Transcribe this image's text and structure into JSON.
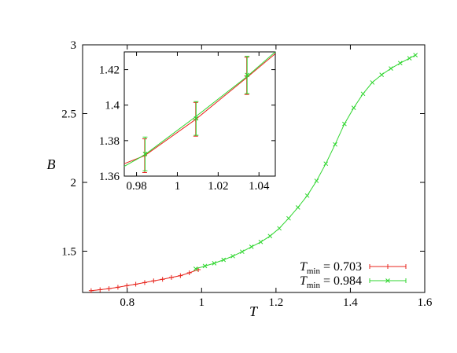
{
  "chart_data": [
    {
      "type": "line",
      "title": "",
      "xlabel": "T",
      "ylabel": "B",
      "xlim": [
        0.68,
        1.6
      ],
      "ylim": [
        1.2,
        3.0
      ],
      "xticks": [
        "0.8",
        "1",
        "1.2",
        "1.4",
        "1.6"
      ],
      "yticks": [
        "1.5",
        "2",
        "2.5",
        "3"
      ],
      "legend_position": "bottom-right",
      "grid": false,
      "series": [
        {
          "name": "T_min = 0.703",
          "legend_main": "T",
          "legend_sub": "min",
          "legend_value": "= 0.703",
          "color": "#e8241c",
          "marker": "plus",
          "x": [
            0.703,
            0.727,
            0.751,
            0.775,
            0.799,
            0.823,
            0.847,
            0.871,
            0.895,
            0.919,
            0.943,
            0.967,
            0.991
          ],
          "y": [
            1.213,
            1.22,
            1.228,
            1.238,
            1.249,
            1.26,
            1.272,
            1.284,
            1.296,
            1.309,
            1.322,
            1.343,
            1.366
          ]
        },
        {
          "name": "T_min = 0.984",
          "legend_main": "T",
          "legend_sub": "min",
          "legend_value": "= 0.984",
          "color": "#2fd62f",
          "marker": "x",
          "x": [
            0.984,
            1.009,
            1.034,
            1.059,
            1.084,
            1.109,
            1.134,
            1.159,
            1.184,
            1.209,
            1.234,
            1.259,
            1.284,
            1.309,
            1.334,
            1.359,
            1.384,
            1.409,
            1.434,
            1.459,
            1.484,
            1.509,
            1.534,
            1.559,
            1.575
          ],
          "y": [
            1.372,
            1.392,
            1.412,
            1.437,
            1.464,
            1.496,
            1.532,
            1.567,
            1.61,
            1.666,
            1.739,
            1.818,
            1.904,
            2.011,
            2.136,
            2.276,
            2.425,
            2.542,
            2.644,
            2.726,
            2.782,
            2.828,
            2.867,
            2.902,
            2.925
          ]
        }
      ]
    },
    {
      "type": "line",
      "title": "",
      "xlabel": "",
      "ylabel": "",
      "xlim": [
        0.974,
        1.048
      ],
      "ylim": [
        1.36,
        1.43
      ],
      "xticks": [
        "0.98",
        "1",
        "1.02",
        "1.04"
      ],
      "yticks": [
        "1.36",
        "1.38",
        "1.4",
        "1.42"
      ],
      "grid": false,
      "series": [
        {
          "color": "#e8241c",
          "x": [
            0.974,
            0.984,
            1.009,
            1.034,
            1.048
          ],
          "y": [
            1.367,
            1.3715,
            1.392,
            1.4155,
            1.429
          ],
          "points": [
            {
              "x": 0.984,
              "y": 1.3715,
              "err": 0.0095
            },
            {
              "x": 1.009,
              "y": 1.392,
              "err": 0.0095
            },
            {
              "x": 1.034,
              "y": 1.4165,
              "err": 0.0105
            }
          ]
        },
        {
          "color": "#2fd62f",
          "x": [
            0.974,
            0.984,
            1.009,
            1.034,
            1.048
          ],
          "y": [
            1.3655,
            1.372,
            1.3935,
            1.416,
            1.43
          ],
          "points": [
            {
              "x": 0.984,
              "y": 1.3725,
              "err": 0.0095
            },
            {
              "x": 1.009,
              "y": 1.3925,
              "err": 0.0095
            },
            {
              "x": 1.034,
              "y": 1.417,
              "err": 0.0105
            }
          ]
        }
      ]
    }
  ]
}
